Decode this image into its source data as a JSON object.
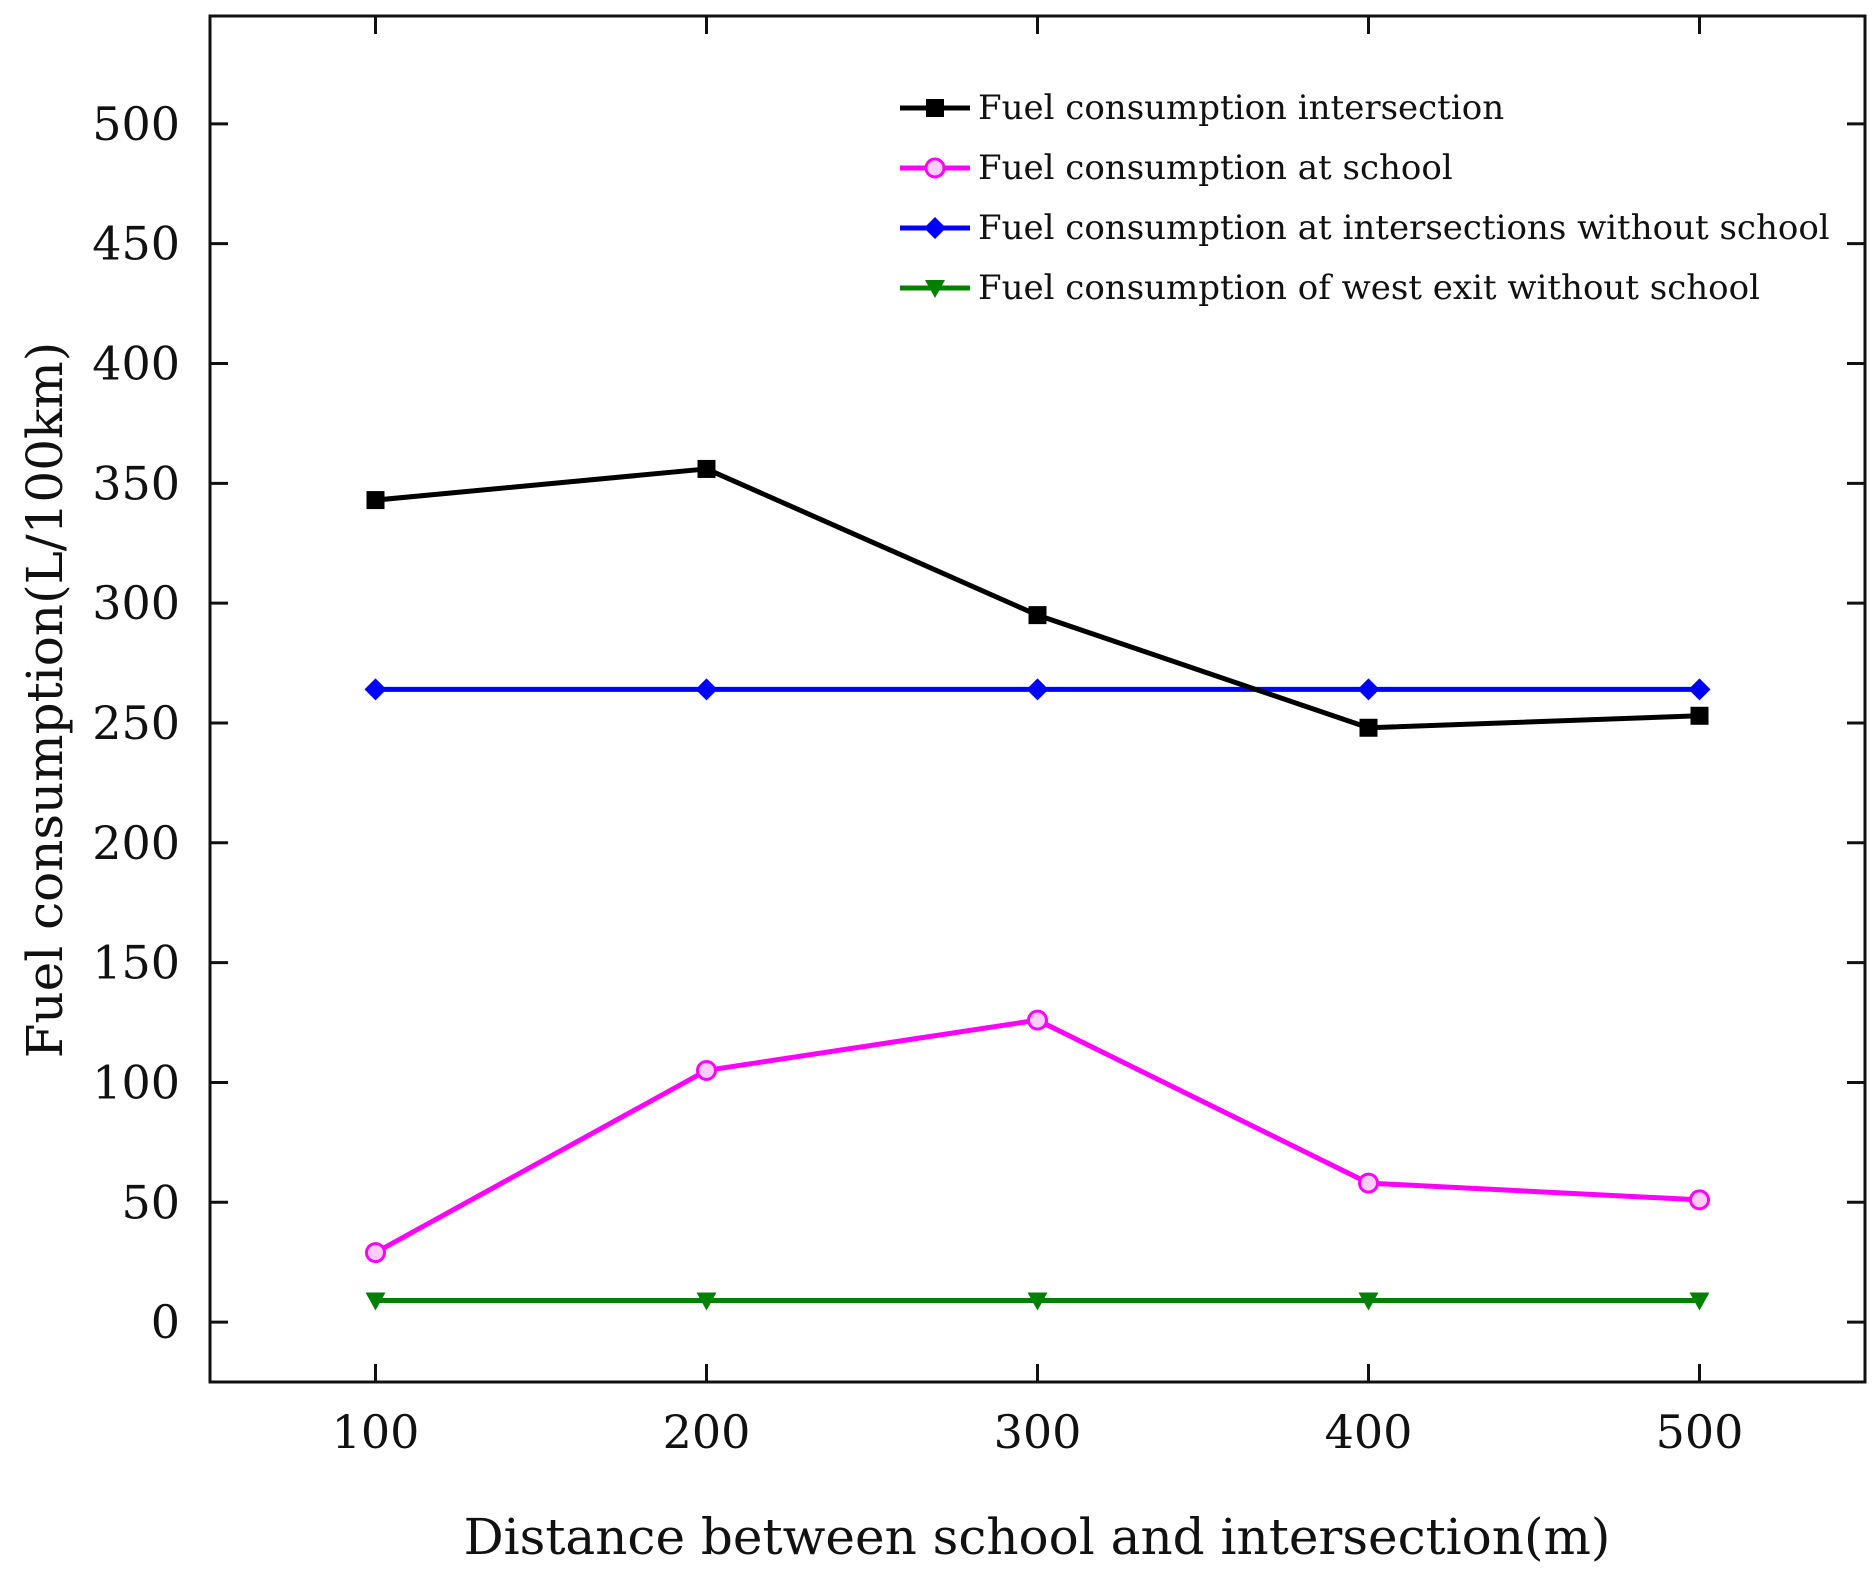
{
  "chart_data": {
    "type": "line",
    "title": "",
    "xlabel": "Distance between school and intersection(m)",
    "ylabel": "Fuel consumption(L/100km)",
    "x": [
      100,
      200,
      300,
      400,
      500
    ],
    "xlim": [
      50,
      550
    ],
    "ylim": [
      -25,
      545
    ],
    "xticks": [
      100,
      200,
      300,
      400,
      500
    ],
    "yticks": [
      0,
      50,
      100,
      150,
      200,
      250,
      300,
      350,
      400,
      450,
      500
    ],
    "grid": false,
    "legend_position": "top-right",
    "series": [
      {
        "name": "Fuel consumption intersection",
        "color": "#000000",
        "marker": "square",
        "values": [
          343,
          356,
          295,
          248,
          253
        ]
      },
      {
        "name": "Fuel consumption at school",
        "color": "#ff00ff",
        "marker": "circle",
        "values": [
          29,
          105,
          126,
          58,
          51
        ]
      },
      {
        "name": "Fuel consumption at intersections without school",
        "color": "#0000ff",
        "marker": "diamond",
        "values": [
          264,
          264,
          264,
          264,
          264
        ]
      },
      {
        "name": "Fuel consumption of west exit without school",
        "color": "#008000",
        "marker": "triangle-down",
        "values": [
          9,
          9,
          9,
          9,
          9
        ]
      }
    ]
  }
}
